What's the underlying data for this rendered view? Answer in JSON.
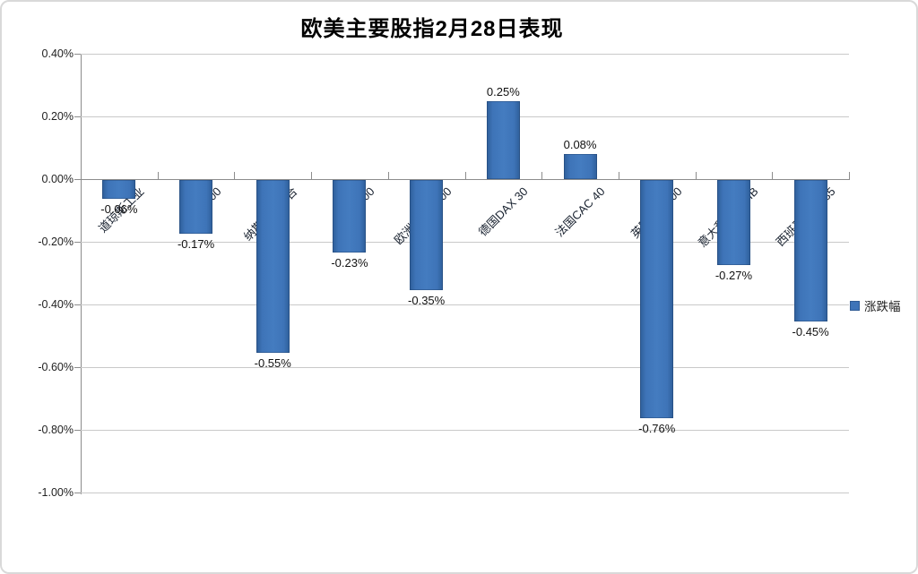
{
  "title": "欧美主要股指2月28日表现",
  "legend": {
    "label": "涨跌幅",
    "marker_color": "#3e74b8"
  },
  "colors": {
    "bar_fill": "#3e74b8",
    "bar_edge": "#2e5e99",
    "gridline": "#c9c9c9",
    "axis_line": "#8c8c8c",
    "text": "#1f1f1f"
  },
  "chart_data": {
    "type": "bar",
    "title": "欧美主要股指2月28日表现",
    "categories": [
      "道琼斯工业",
      "标普500",
      "纳斯达克综合",
      "罗素2000",
      "欧洲Stoxx 600",
      "德国DAX 30",
      "法国CAC 40",
      "英国富时100",
      "意大利富时MIB",
      "西班牙IBEX 35"
    ],
    "series": [
      {
        "name": "涨跌幅",
        "values": [
          -0.06,
          -0.17,
          -0.55,
          -0.23,
          -0.35,
          0.25,
          0.08,
          -0.76,
          -0.27,
          -0.45
        ]
      }
    ],
    "data_labels": [
      "-0.06%",
      "-0.17%",
      "-0.55%",
      "-0.23%",
      "-0.35%",
      "0.25%",
      "0.08%",
      "-0.76%",
      "-0.27%",
      "-0.45%"
    ],
    "xlabel": "",
    "ylabel": "",
    "y_ticks": [
      "0.40%",
      "0.20%",
      "0.00%",
      "-0.20%",
      "-0.40%",
      "-0.60%",
      "-0.80%",
      "-1.00%"
    ],
    "y_tick_values": [
      0.4,
      0.2,
      0.0,
      -0.2,
      -0.4,
      -0.6,
      -0.8,
      -1.0
    ],
    "ylim": [
      -1.0,
      0.4
    ],
    "grid": true,
    "legend_position": "right"
  }
}
